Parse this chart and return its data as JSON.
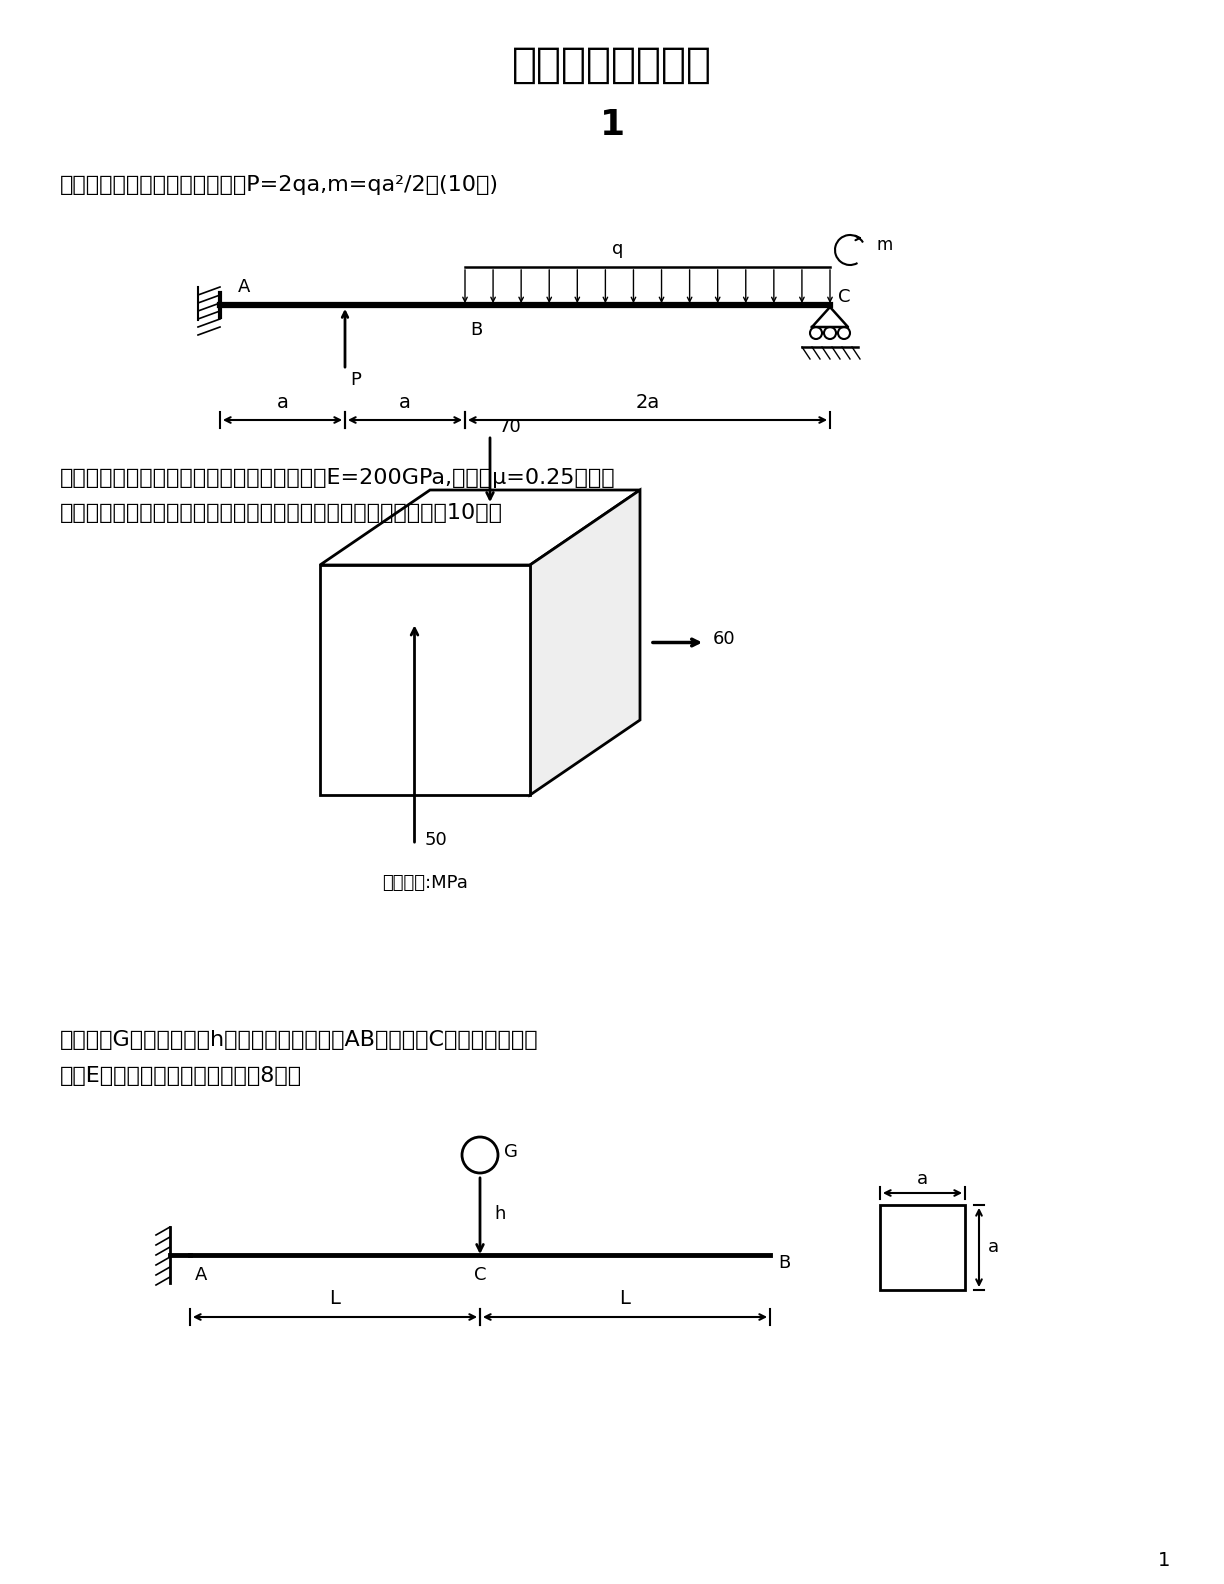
{
  "title": "材料力学考研真题",
  "subtitle": "1",
  "page_number": "1",
  "bg_color": "#ffffff",
  "text_color": "#000000",
  "section1_text": "一、作图示构造的内力图，其中P=2qa,m=qa²/2。(10分)",
  "section2_text1": "二、某构件的应力状态如图，材料的弹性模量E=200GPa,泊松比μ=0.25。试求",
  "section2_text2": "主应力，最大剪应力，最大线应变，并画出该点的应力圆草图。〔10分〕",
  "section3_text1": "三、重为G的重物自高为h处自由落下，冲击到AB梁的中点C，材料的弹性模",
  "section3_text2": "量为E，试求梁内最大动挠度。〔8分〕",
  "stress_label": "应力单位:MPa"
}
